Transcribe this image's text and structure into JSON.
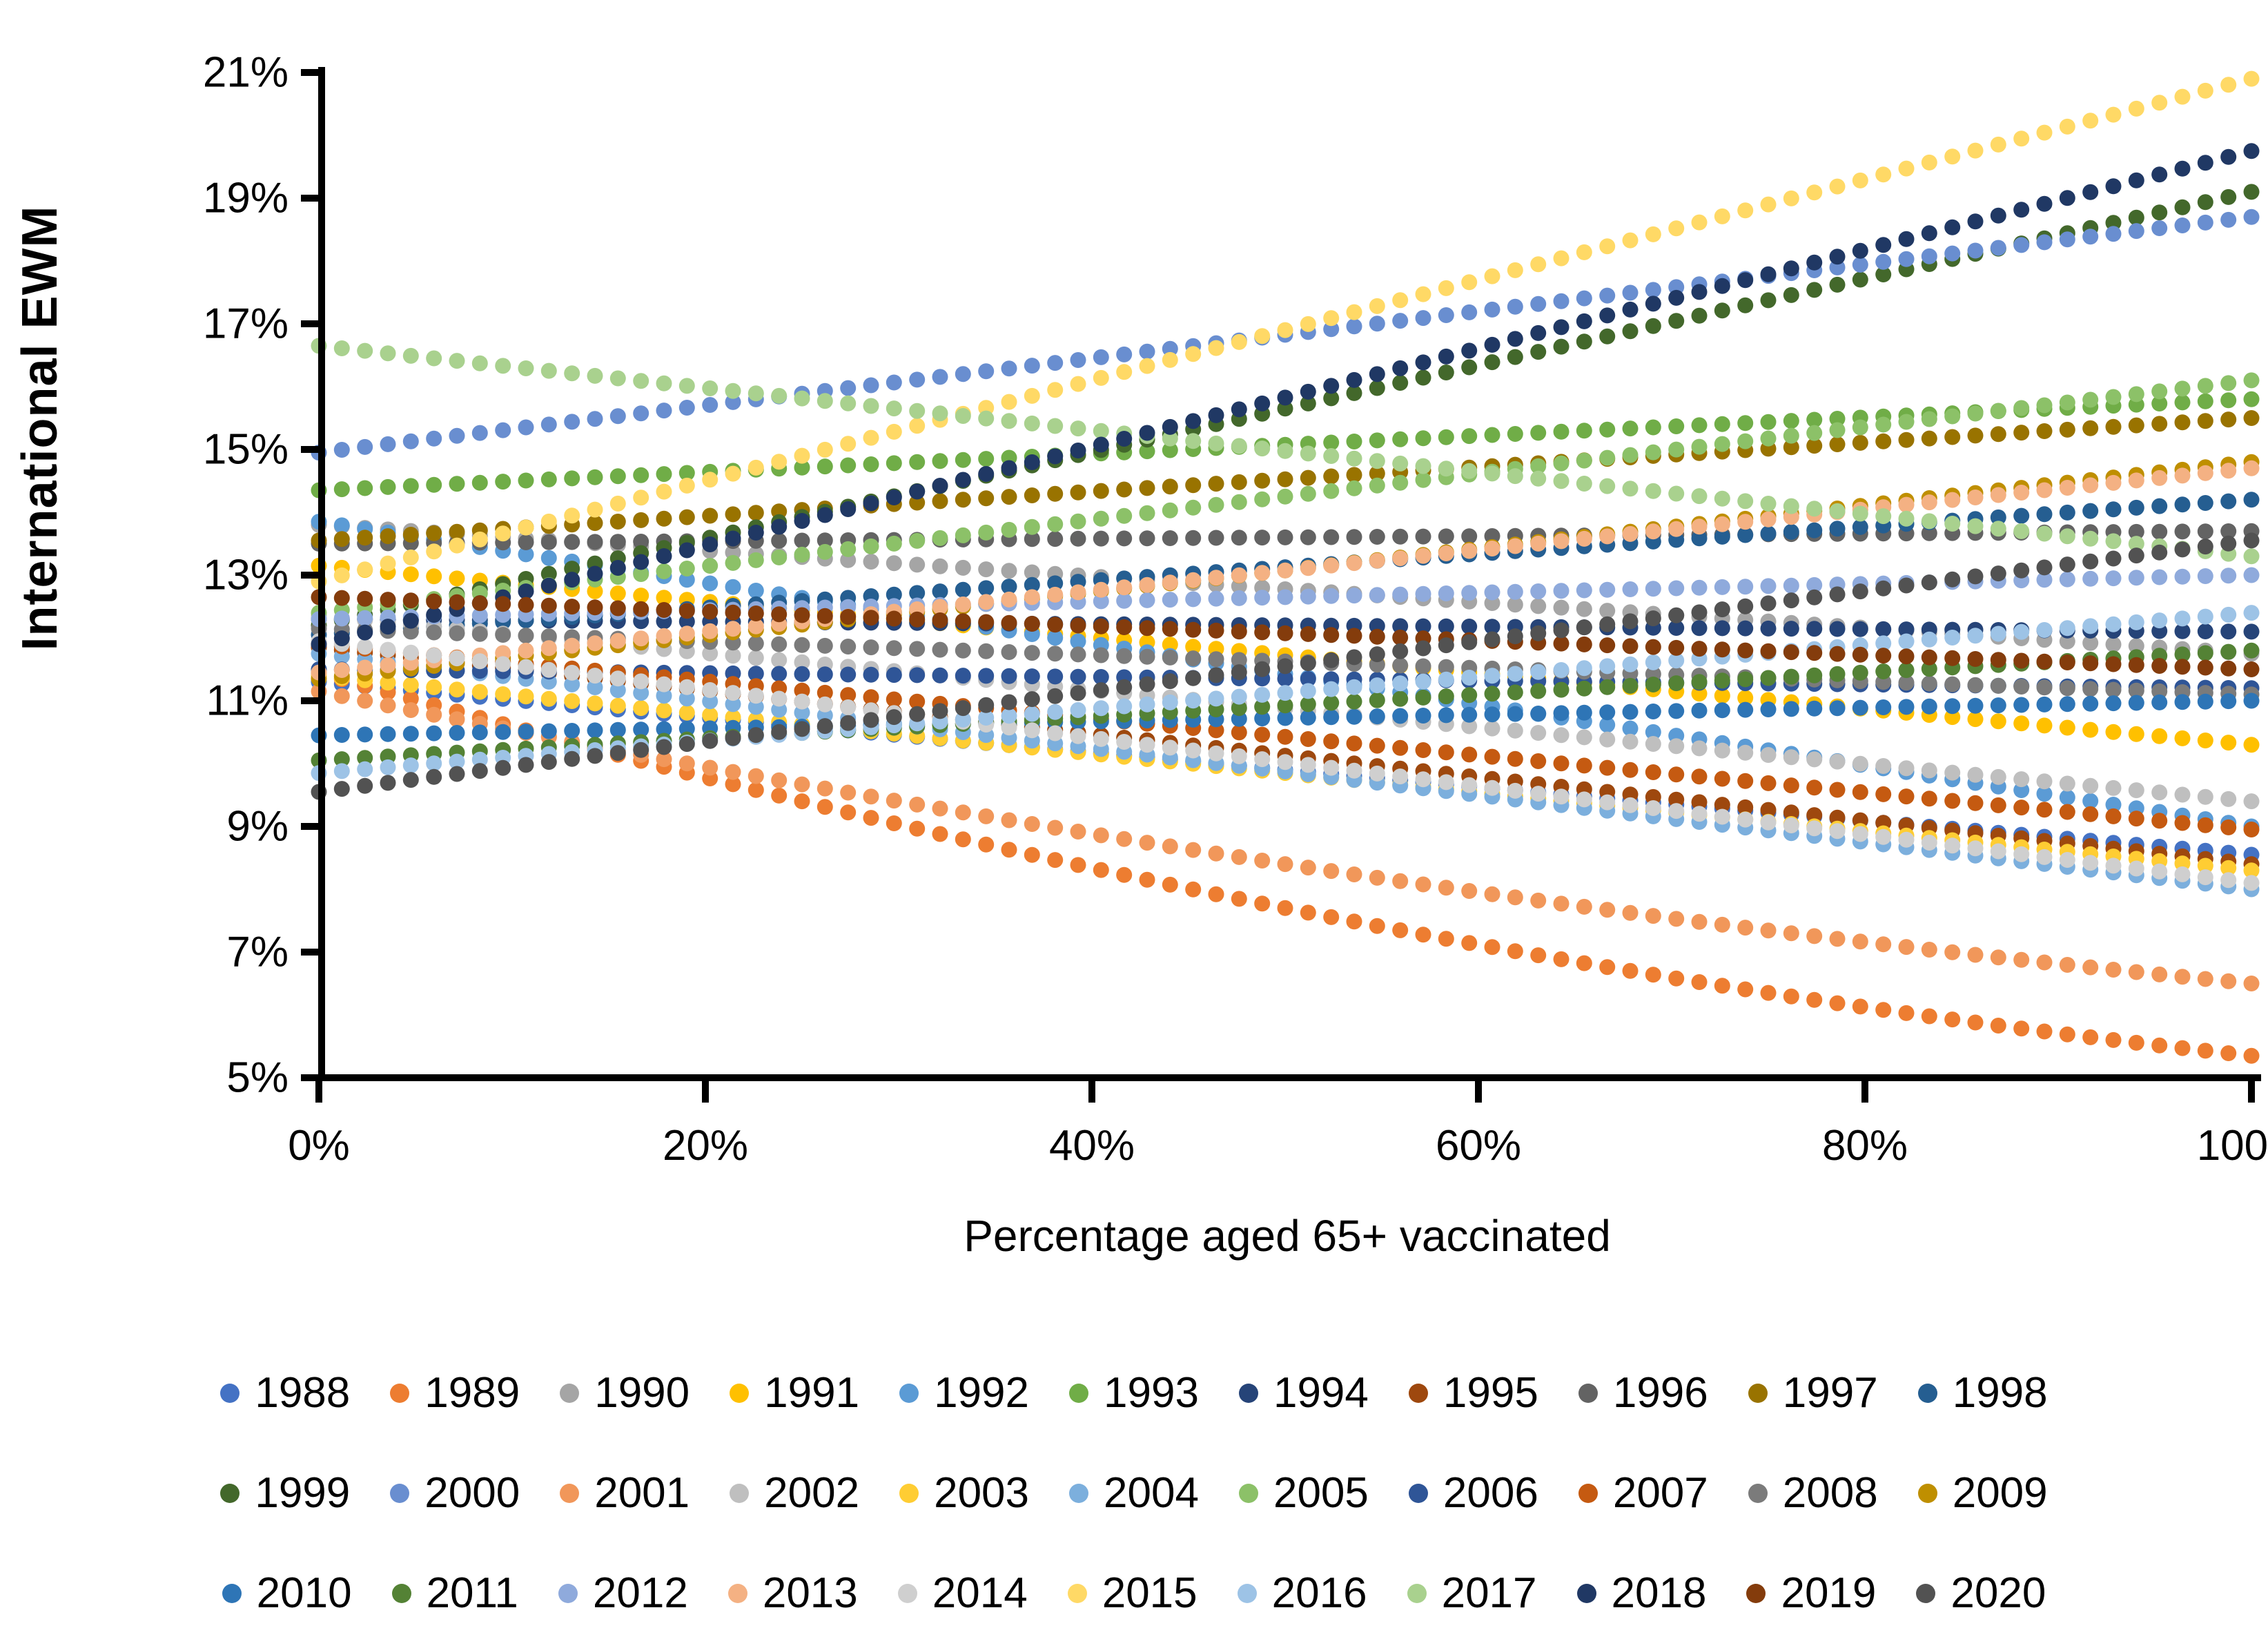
{
  "chart_data": {
    "type": "scatter",
    "title": "",
    "xlabel": "Percentage aged 65+ vaccinated",
    "ylabel": "International EWM",
    "x_ticks": [
      0,
      20,
      40,
      60,
      80,
      100
    ],
    "x_tick_labels": [
      "0%",
      "20%",
      "40%",
      "60%",
      "80%",
      "100%"
    ],
    "y_ticks": [
      21,
      19,
      17,
      15,
      13,
      11,
      9,
      7,
      5
    ],
    "y_tick_labels": [
      "21%",
      "19%",
      "17%",
      "15%",
      "13%",
      "11%",
      "9%",
      "7%",
      "5%"
    ],
    "xlim": [
      0,
      100
    ],
    "ylim": [
      5,
      21
    ],
    "grid": false,
    "legend_position": "bottom",
    "legend_rows": [
      [
        "1988",
        "1989",
        "1990",
        "1991",
        "1992",
        "1993",
        "1994",
        "1995",
        "1996",
        "1997",
        "1998"
      ],
      [
        "1999",
        "2000",
        "2001",
        "2002",
        "2003",
        "2004",
        "2005",
        "2006",
        "2007",
        "2008",
        "2009"
      ],
      [
        "2010",
        "2011",
        "2012",
        "2013",
        "2014",
        "2015",
        "2016",
        "2017",
        "2018",
        "2019",
        "2020"
      ]
    ],
    "points_per_series": 85,
    "series_note": "Each year is a fitted trend rendered as evenly spaced dots from 0% to 100% vaccination; start/mid/end are International EWM values (%) at x=0, x=50, x=100.",
    "series": [
      {
        "name": "1988",
        "color": "#4472C4",
        "start": 11.3,
        "mid": 9.9,
        "end": 8.55
      },
      {
        "name": "1989",
        "color": "#ED7D31",
        "start": 11.45,
        "mid": 7.7,
        "end": 5.35
      },
      {
        "name": "1990",
        "color": "#A5A5A5",
        "start": 13.8,
        "mid": null,
        "end": 11.75
      },
      {
        "name": "1991",
        "color": "#FFC000",
        "start": 13.15,
        "mid": null,
        "end": 10.3
      },
      {
        "name": "1992",
        "color": "#5B9BD5",
        "start": 13.85,
        "mid": null,
        "end": 9.0
      },
      {
        "name": "1993",
        "color": "#70AD47",
        "start": 14.35,
        "mid": null,
        "end": 15.8
      },
      {
        "name": "1994",
        "color": "#264478",
        "start": 12.3,
        "mid": null,
        "end": 12.1
      },
      {
        "name": "1995",
        "color": "#9E480E",
        "start": 11.85,
        "mid": null,
        "end": 8.4
      },
      {
        "name": "1996",
        "color": "#636363",
        "start": 13.5,
        "mid": null,
        "end": 13.7
      },
      {
        "name": "1997",
        "color": "#997300",
        "start": 13.55,
        "mid": null,
        "end": 15.5
      },
      {
        "name": "1998",
        "color": "#255E91",
        "start": 12.05,
        "mid": null,
        "end": 14.2
      },
      {
        "name": "1999",
        "color": "#43682B",
        "start": 12.2,
        "mid": null,
        "end": 19.1
      },
      {
        "name": "2000",
        "color": "#698ED0",
        "start": 14.95,
        "mid": null,
        "end": 18.7
      },
      {
        "name": "2001",
        "color": "#F1975A",
        "start": 11.15,
        "mid": 8.4,
        "end": 6.5
      },
      {
        "name": "2002",
        "color": "#BFBFBF",
        "start": 12.35,
        "mid": null,
        "end": 9.4
      },
      {
        "name": "2003",
        "color": "#FFCD33",
        "start": 11.4,
        "mid": null,
        "end": 8.3
      },
      {
        "name": "2004",
        "color": "#7CAFDD",
        "start": 11.75,
        "mid": null,
        "end": 8.0
      },
      {
        "name": "2005",
        "color": "#8CC168",
        "start": 12.4,
        "mid": null,
        "end": 16.1
      },
      {
        "name": "2006",
        "color": "#2F5597",
        "start": 11.5,
        "mid": null,
        "end": 11.2
      },
      {
        "name": "2007",
        "color": "#C55A11",
        "start": 11.9,
        "mid": null,
        "end": 8.95
      },
      {
        "name": "2008",
        "color": "#7B7B7B",
        "start": 12.15,
        "mid": null,
        "end": 11.1
      },
      {
        "name": "2009",
        "color": "#BF8F00",
        "start": 11.35,
        "mid": null,
        "end": 14.8
      },
      {
        "name": "2010",
        "color": "#2E75B6",
        "start": 10.45,
        "mid": null,
        "end": 11.0
      },
      {
        "name": "2011",
        "color": "#548235",
        "start": 10.05,
        "mid": null,
        "end": 11.8
      },
      {
        "name": "2012",
        "color": "#8FAADC",
        "start": 12.3,
        "mid": null,
        "end": 13.0
      },
      {
        "name": "2013",
        "color": "#F4B183",
        "start": 11.45,
        "mid": null,
        "end": 14.7
      },
      {
        "name": "2014",
        "color": "#CFCFCF",
        "start": 11.95,
        "mid": null,
        "end": 8.1
      },
      {
        "name": "2015",
        "color": "#FFD966",
        "start": 12.9,
        "mid": null,
        "end": 20.9
      },
      {
        "name": "2016",
        "color": "#9DC3E6",
        "start": 9.85,
        "mid": null,
        "end": 12.4
      },
      {
        "name": "2017",
        "color": "#A9D18E",
        "start": 16.65,
        "mid": null,
        "end": 13.3
      },
      {
        "name": "2018",
        "color": "#203864",
        "start": 11.9,
        "mid": null,
        "end": 19.75
      },
      {
        "name": "2019",
        "color": "#843C0C",
        "start": 12.65,
        "mid": null,
        "end": 11.5
      },
      {
        "name": "2020",
        "color": "#525252",
        "start": 9.55,
        "mid": null,
        "end": 13.55
      }
    ]
  }
}
